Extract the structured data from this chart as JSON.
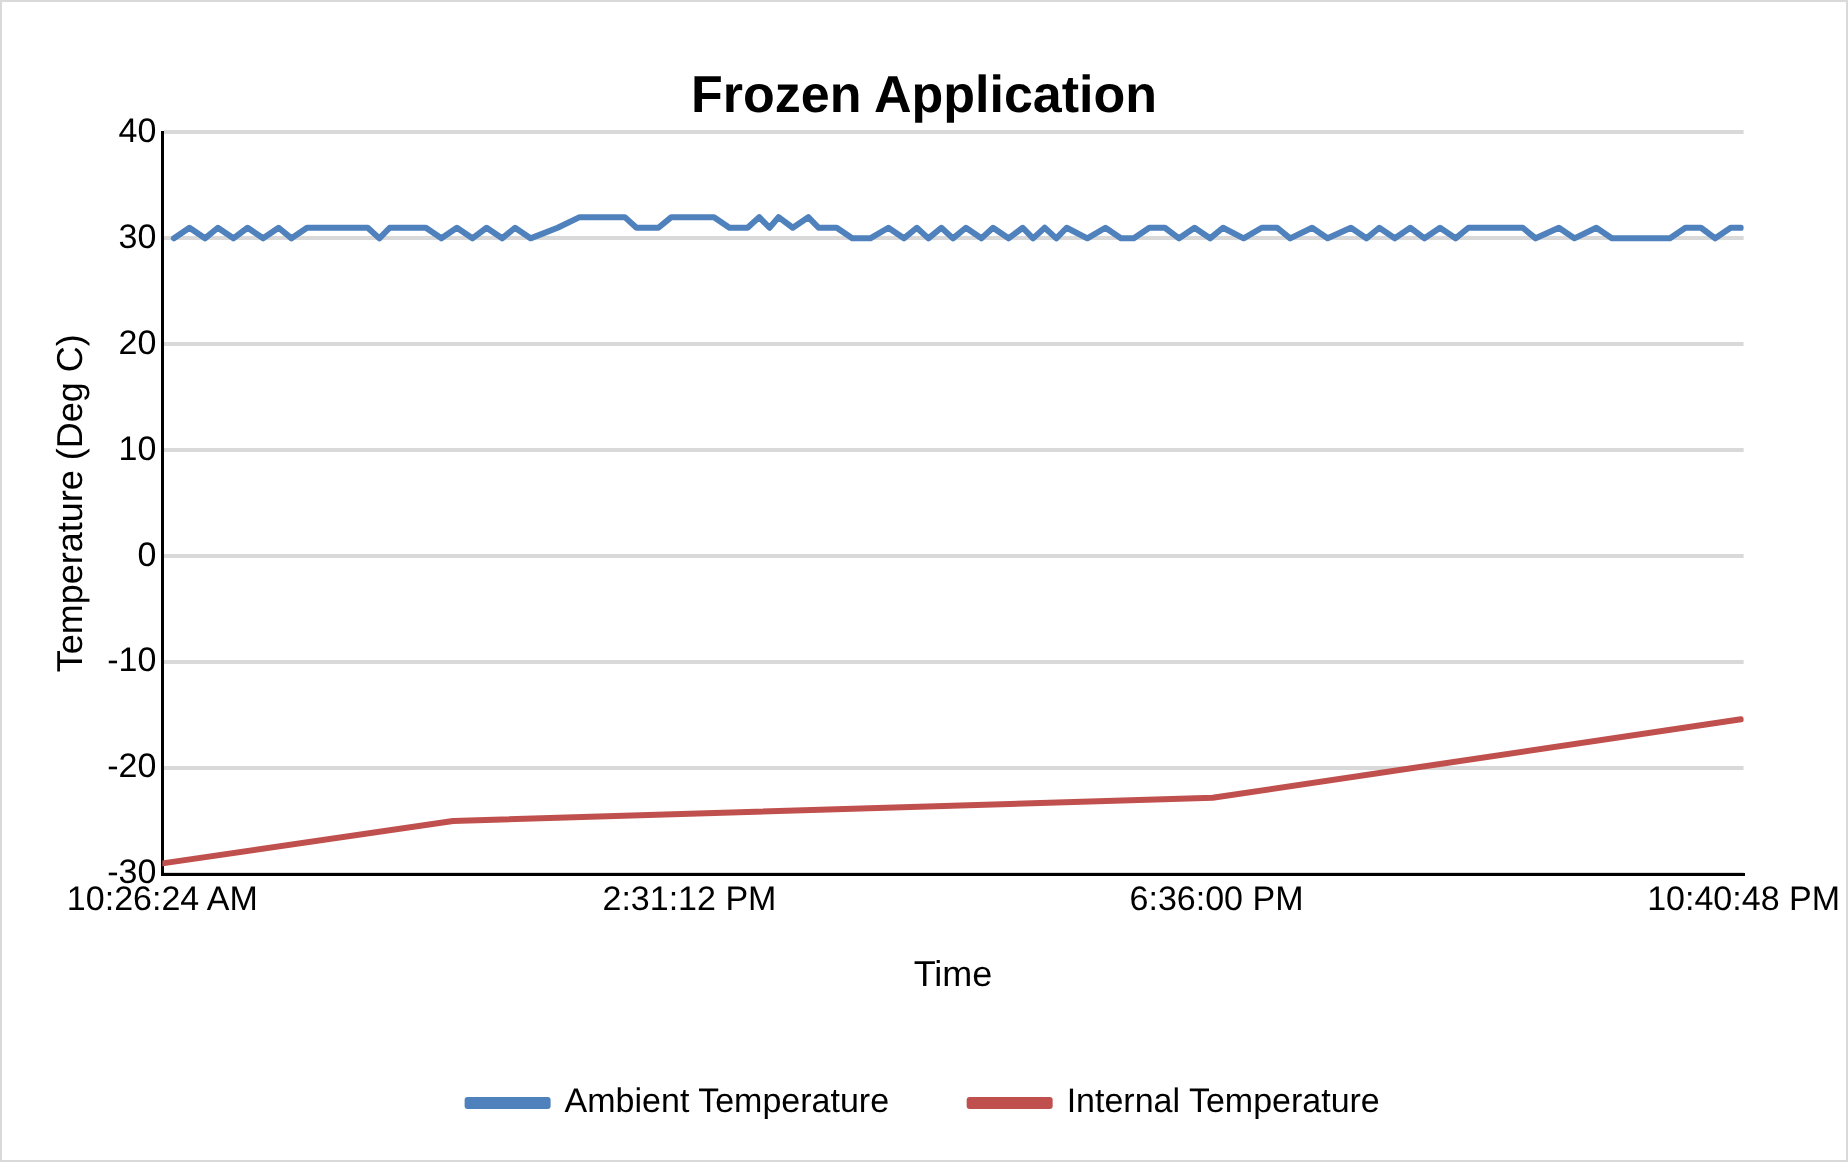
{
  "chart_data": {
    "type": "line",
    "title": "Frozen Application",
    "xlabel": "Time",
    "ylabel": "Temperature (Deg C)",
    "xlim": [
      10.44,
      22.68
    ],
    "xticks": [
      {
        "value": 10.44,
        "label": "10:26:24 AM"
      },
      {
        "value": 14.52,
        "label": "2:31:12 PM"
      },
      {
        "value": 18.6,
        "label": "6:36:00 PM"
      },
      {
        "value": 22.68,
        "label": "10:40:48 PM"
      }
    ],
    "ylim": [
      -30,
      40
    ],
    "yticks": [
      -30,
      -20,
      -10,
      0,
      10,
      20,
      30,
      40
    ],
    "grid": "y",
    "legend": "bottom",
    "marker": "none",
    "line_style": "solid",
    "series": [
      {
        "name": "Ambient Temperature",
        "color": "#4f81bd",
        "x": [
          10.53,
          10.65,
          10.77,
          10.87,
          10.99,
          11.1,
          11.22,
          11.34,
          11.44,
          11.56,
          11.72,
          12.03,
          12.12,
          12.2,
          12.34,
          12.48,
          12.6,
          12.72,
          12.84,
          12.95,
          13.07,
          13.17,
          13.29,
          13.5,
          13.67,
          14.02,
          14.11,
          14.28,
          14.38,
          14.71,
          14.83,
          14.97,
          15.06,
          15.14,
          15.21,
          15.32,
          15.44,
          15.52,
          15.66,
          15.78,
          15.92,
          16.06,
          16.18,
          16.28,
          16.37,
          16.47,
          16.56,
          16.66,
          16.78,
          16.87,
          16.99,
          17.1,
          17.18,
          17.27,
          17.36,
          17.44,
          17.6,
          17.74,
          17.86,
          17.96,
          18.08,
          18.2,
          18.31,
          18.43,
          18.55,
          18.65,
          18.81,
          18.95,
          19.07,
          19.17,
          19.34,
          19.46,
          19.64,
          19.76,
          19.86,
          19.98,
          20.1,
          20.21,
          20.33,
          20.45,
          20.55,
          20.97,
          21.07,
          21.25,
          21.37,
          21.54,
          21.66,
          22.11,
          22.23,
          22.35,
          22.46,
          22.58,
          22.66
        ],
        "values": [
          30,
          31,
          30,
          31,
          30,
          31,
          30,
          31,
          30,
          31,
          31,
          31,
          30,
          31,
          31,
          31,
          30,
          31,
          30,
          31,
          30,
          31,
          30,
          31,
          32,
          32,
          31,
          31,
          32,
          32,
          31,
          31,
          32,
          31,
          32,
          31,
          32,
          31,
          31,
          30,
          30,
          31,
          30,
          31,
          30,
          31,
          30,
          31,
          30,
          31,
          30,
          31,
          30,
          31,
          30,
          31,
          30,
          31,
          30,
          30,
          31,
          31,
          30,
          31,
          30,
          31,
          30,
          31,
          31,
          30,
          31,
          30,
          31,
          30,
          31,
          30,
          31,
          30,
          31,
          30,
          31,
          31,
          30,
          31,
          30,
          31,
          30,
          30,
          31,
          31,
          30,
          31,
          31
        ]
      },
      {
        "name": "Internal Temperature",
        "color": "#c0504d",
        "x": [
          10.44,
          12.69,
          18.57,
          22.66
        ],
        "values": [
          -29,
          -25,
          -22.8,
          -15.4
        ]
      }
    ]
  }
}
